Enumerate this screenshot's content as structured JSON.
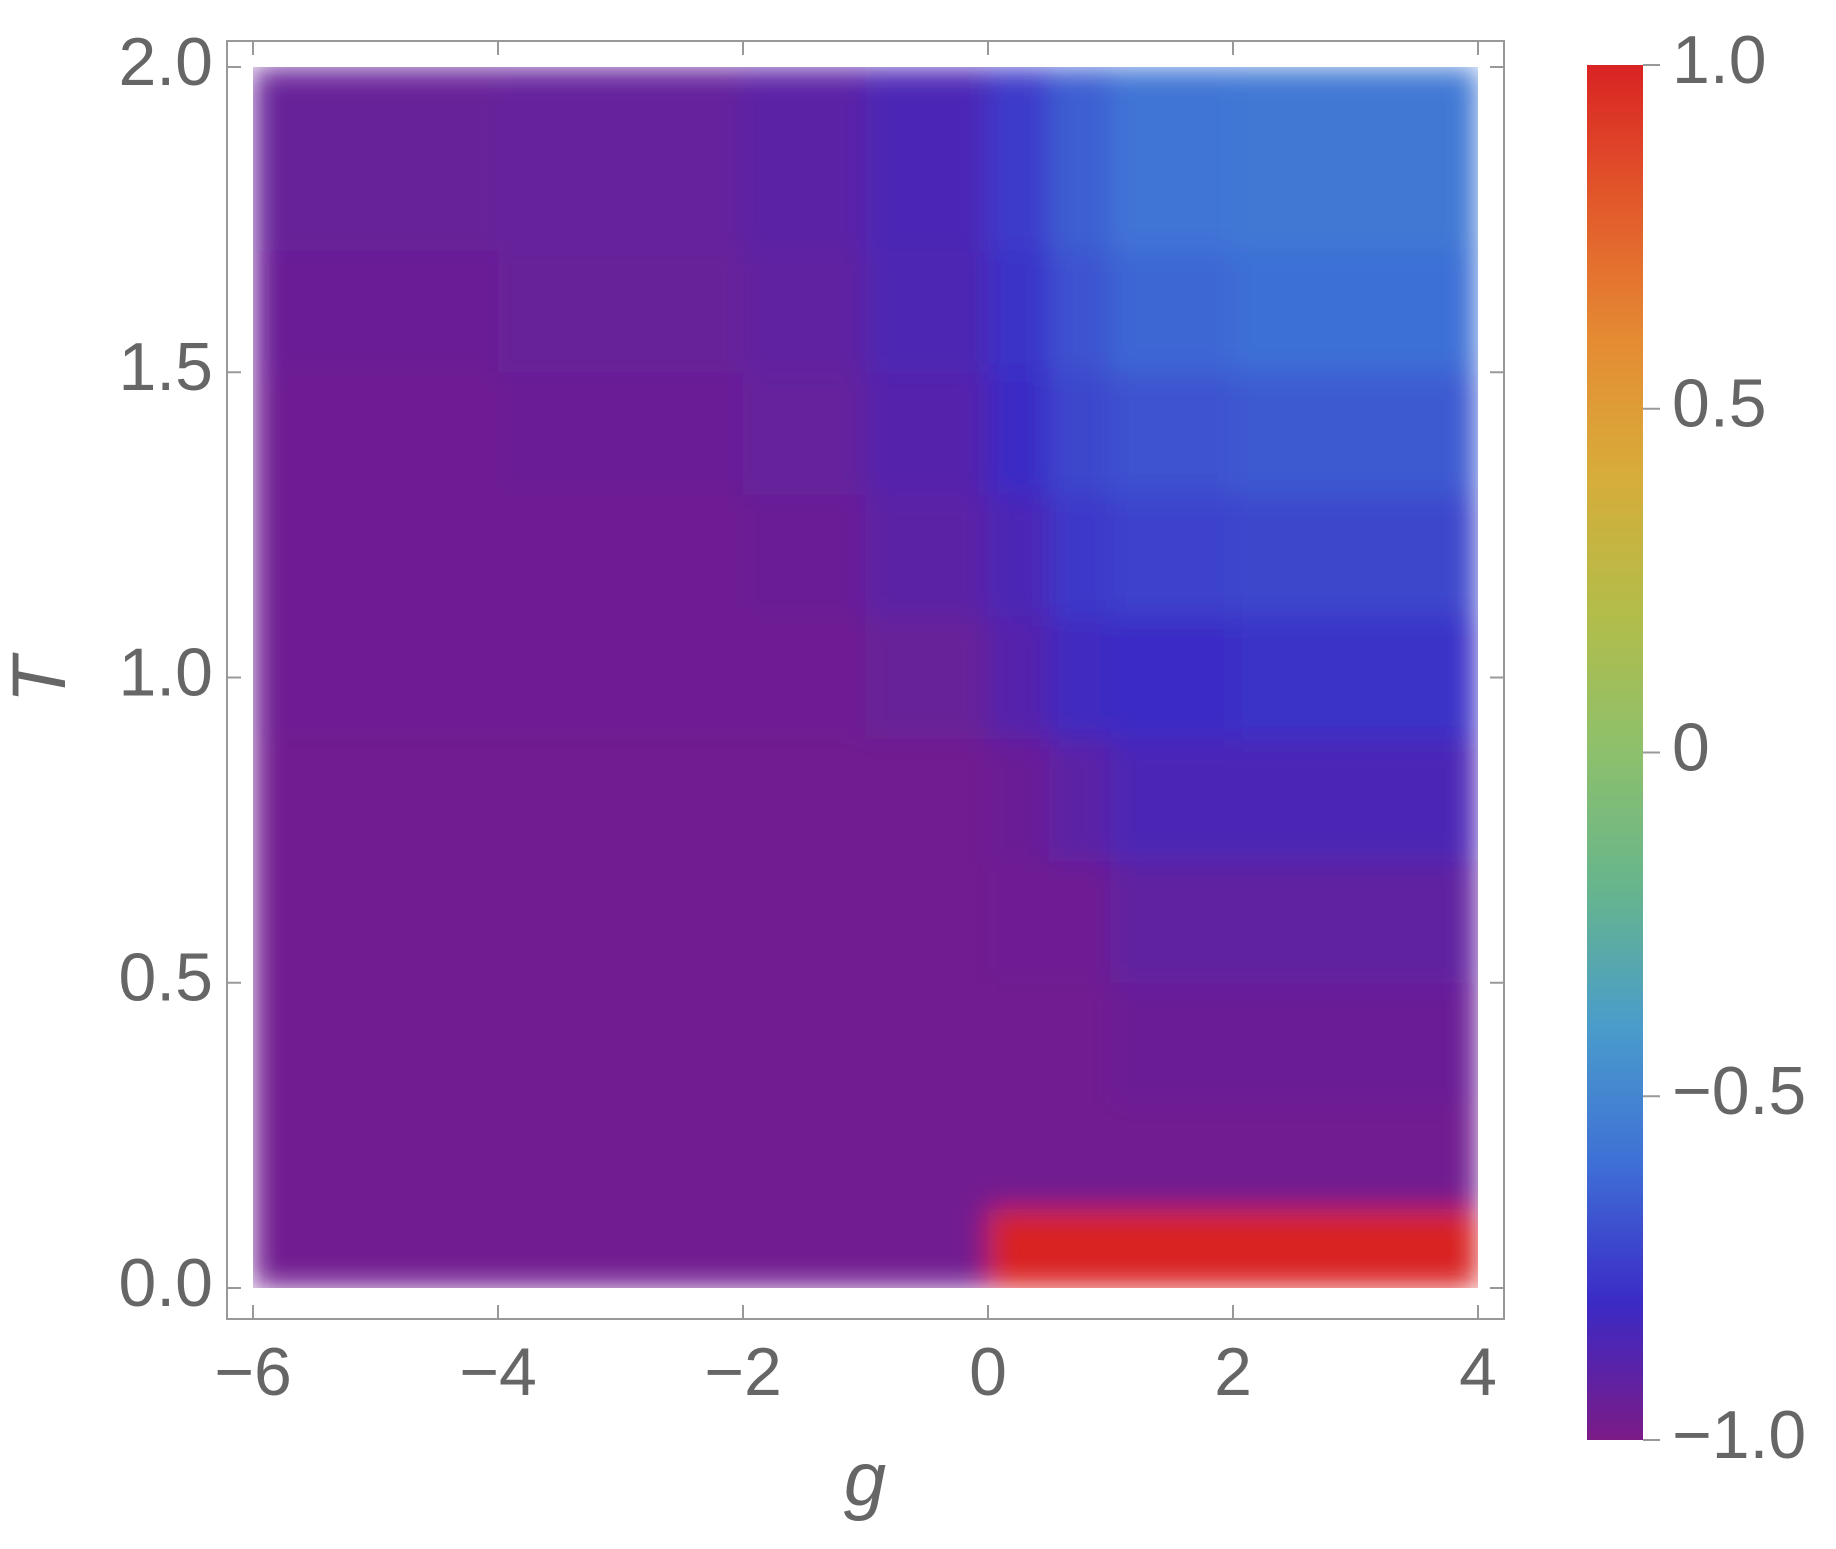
{
  "chart_data": {
    "type": "heatmap",
    "x_label": "g",
    "y_label": "T",
    "x_bins": [
      -6,
      -4,
      -2,
      -1,
      0,
      0.5,
      1,
      2,
      3,
      4
    ],
    "y_bins": [
      0,
      0.13,
      0.3,
      0.5,
      0.7,
      0.9,
      1.1,
      1.3,
      1.5,
      1.7,
      2.0
    ],
    "z": [
      [
        -0.97,
        -0.97,
        -0.97,
        -0.97,
        1.0,
        1.0,
        1.0,
        1.0,
        1.0
      ],
      [
        -0.97,
        -0.97,
        -0.97,
        -0.97,
        -0.97,
        -0.97,
        -0.97,
        -0.97,
        -0.97
      ],
      [
        -0.97,
        -0.97,
        -0.97,
        -0.97,
        -0.97,
        -0.97,
        -0.95,
        -0.95,
        -0.95
      ],
      [
        -0.97,
        -0.97,
        -0.97,
        -0.97,
        -0.96,
        -0.96,
        -0.92,
        -0.92,
        -0.92
      ],
      [
        -0.97,
        -0.97,
        -0.97,
        -0.97,
        -0.95,
        -0.9,
        -0.85,
        -0.85,
        -0.85
      ],
      [
        -0.96,
        -0.96,
        -0.96,
        -0.94,
        -0.88,
        -0.82,
        -0.8,
        -0.78,
        -0.78
      ],
      [
        -0.96,
        -0.96,
        -0.95,
        -0.9,
        -0.85,
        -0.76,
        -0.73,
        -0.72,
        -0.72
      ],
      [
        -0.96,
        -0.95,
        -0.93,
        -0.88,
        -0.8,
        -0.72,
        -0.68,
        -0.66,
        -0.66
      ],
      [
        -0.95,
        -0.94,
        -0.92,
        -0.86,
        -0.78,
        -0.68,
        -0.62,
        -0.6,
        -0.6
      ],
      [
        -0.94,
        -0.93,
        -0.9,
        -0.85,
        -0.75,
        -0.65,
        -0.58,
        -0.56,
        -0.56
      ]
    ],
    "xlim": [
      -6,
      4
    ],
    "ylim": [
      0,
      2.0
    ],
    "xticks": [
      {
        "value": -6,
        "label": "−6"
      },
      {
        "value": -4,
        "label": "−4"
      },
      {
        "value": -2,
        "label": "−2"
      },
      0,
      2,
      4
    ],
    "yticks": [
      {
        "value": 0,
        "label": "0.0"
      },
      0.5,
      {
        "value": 1,
        "label": "1.0"
      },
      1.5,
      {
        "value": 2,
        "label": "2.0"
      }
    ],
    "zlim": [
      -1,
      1
    ],
    "zticks": [
      {
        "value": -1,
        "label": "−1.0"
      },
      {
        "value": -0.5,
        "label": "−0.5"
      },
      0,
      0.5,
      {
        "value": 1,
        "label": "1.0"
      }
    ],
    "colormap": [
      "#7b1b86",
      "#3b2ac6",
      "#3e6fd6",
      "#4a9ccb",
      "#66b58d",
      "#8dc06c",
      "#b2bd4a",
      "#d7ad3a",
      "#e58b33",
      "#e2592b",
      "#d92323"
    ]
  }
}
